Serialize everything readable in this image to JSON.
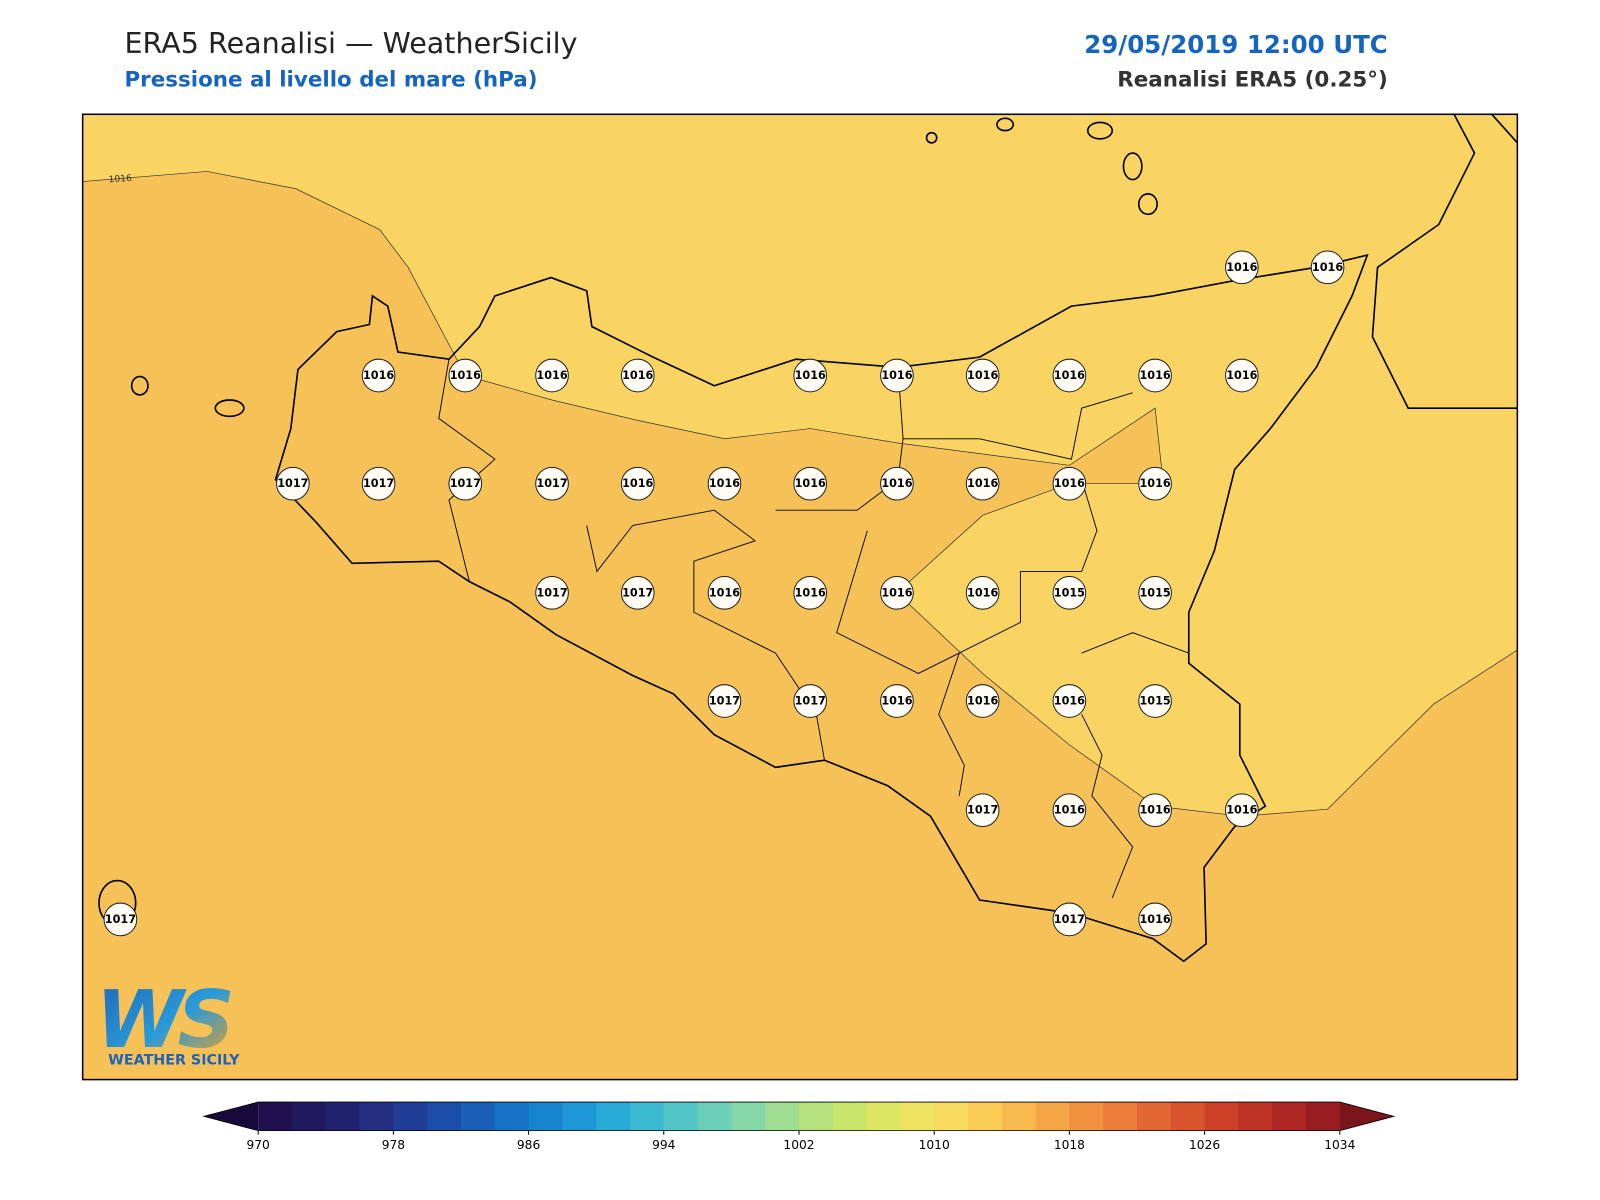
{
  "header": {
    "title": "ERA5 Reanalisi — WeatherSicily",
    "subtitle": "Pressione al livello del mare (hPa)",
    "datetime": "29/05/2019 12:00 UTC",
    "source": "Reanalisi ERA5 (0.25°)"
  },
  "map": {
    "contour_label": "1016",
    "stations": [
      "1016",
      "1016",
      "1016",
      "1016",
      "1016",
      "1016",
      "1016",
      "1016",
      "1016",
      "1016",
      "1016",
      "1016",
      "1017",
      "1017",
      "1017",
      "1017",
      "1016",
      "1016",
      "1016",
      "1016",
      "1016",
      "1016",
      "1016",
      "1017",
      "1017",
      "1016",
      "1016",
      "1016",
      "1016",
      "1015",
      "1015",
      "1017",
      "1017",
      "1016",
      "1016",
      "1016",
      "1015",
      "1017",
      "1016",
      "1016",
      "1016",
      "1017",
      "1017",
      "1016"
    ]
  },
  "colorbar": {
    "ticks": [
      "970",
      "978",
      "986",
      "994",
      "1002",
      "1010",
      "1018",
      "1026",
      "1034"
    ]
  },
  "logo": {
    "mark": "WS",
    "text": "WEATHER SICILY"
  }
}
